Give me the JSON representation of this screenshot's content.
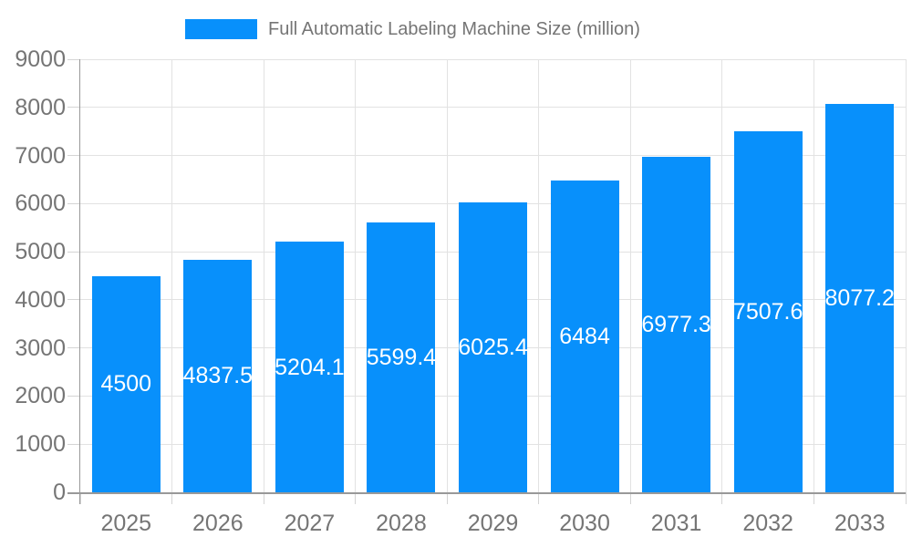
{
  "chart_data": {
    "type": "bar",
    "title": "Full Automatic Labeling Machine Size (million)",
    "categories": [
      "2025",
      "2026",
      "2027",
      "2028",
      "2029",
      "2030",
      "2031",
      "2032",
      "2033"
    ],
    "series": [
      {
        "name": "Full Automatic Labeling Machine Size (million)",
        "values": [
          4500,
          4837.5,
          5204.1,
          5599.4,
          6025.4,
          6484,
          6977.3,
          7507.6,
          8077.2
        ]
      }
    ],
    "xlabel": "",
    "ylabel": "",
    "ylim": [
      0,
      9000
    ],
    "ytick_step": 1000,
    "yticks": [
      0,
      1000,
      2000,
      3000,
      4000,
      5000,
      6000,
      7000,
      8000,
      9000
    ],
    "grid": true,
    "legend_position": "top",
    "value_labels_inside_bars": true
  },
  "colors": {
    "bar": "#0890FB",
    "axis": "#999999",
    "grid": "#e2e2e2",
    "tick": "#d4d4d4",
    "text": "#757575",
    "value_text": "#ffffff",
    "background": "#ffffff"
  }
}
